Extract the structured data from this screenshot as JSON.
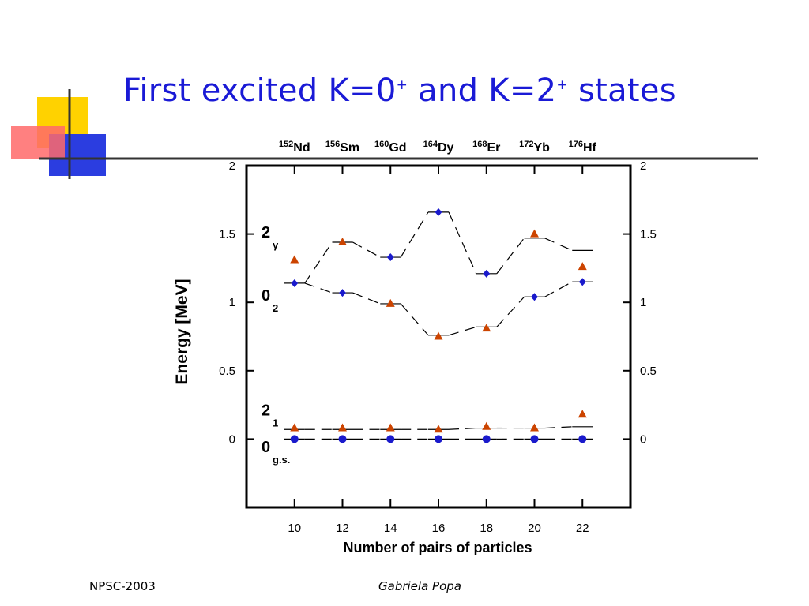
{
  "slide": {
    "title_parts": [
      "First excited K=0",
      "+",
      " and K=2",
      "+",
      " states"
    ],
    "footer_left": "NPSC-2003",
    "footer_right": "Gabriela Popa"
  },
  "decoration": {
    "colors": {
      "yellow": "#ffd200",
      "red": "#ff6a6a",
      "blue": "#2b3de0",
      "dark": "#333333"
    }
  },
  "chart_data": {
    "type": "scatter",
    "xlabel": "Number of pairs of particles",
    "ylabel": "Energy [MeV]",
    "xlim": [
      8,
      24
    ],
    "ylim": [
      -0.5,
      2
    ],
    "x_ticks": [
      10,
      12,
      14,
      16,
      18,
      20,
      22
    ],
    "y_ticks": [
      0,
      0.5,
      1,
      1.5,
      2
    ],
    "y_tick_labels": [
      "0",
      "0.5",
      "1",
      "1.5",
      "2"
    ],
    "top_labels": [
      {
        "x": 10,
        "mass": "152",
        "element": "Nd"
      },
      {
        "x": 12,
        "mass": "156",
        "element": "Sm"
      },
      {
        "x": 14,
        "mass": "160",
        "element": "Gd"
      },
      {
        "x": 16,
        "mass": "164",
        "element": "Dy"
      },
      {
        "x": 18,
        "mass": "168",
        "element": "Er"
      },
      {
        "x": 20,
        "mass": "172",
        "element": "Yb"
      },
      {
        "x": 22,
        "mass": "176",
        "element": "Hf"
      }
    ],
    "level_labels": [
      {
        "main": "2",
        "sub": "γ",
        "y": 1.52
      },
      {
        "main": "0",
        "sub": "2",
        "y": 1.06
      },
      {
        "main": "2",
        "sub": "1",
        "y": 0.22
      },
      {
        "main": "0",
        "sub": "g.s.",
        "y": -0.05
      }
    ],
    "colors": {
      "triangle": "#cc4400",
      "diamond": "#1a1acc",
      "circle": "#1a1acc",
      "line": "#000000"
    },
    "series": [
      {
        "marker": "diamond",
        "x": [
          10,
          12,
          14,
          16,
          18,
          20,
          22
        ],
        "y": [
          1.14,
          1.07,
          1.33,
          1.66,
          1.21,
          1.04,
          1.15
        ]
      },
      {
        "marker": "triangle",
        "x": [
          10,
          12,
          14,
          16,
          18,
          20,
          22
        ],
        "y": [
          1.31,
          1.44,
          0.99,
          0.75,
          0.81,
          1.5,
          1.26
        ]
      },
      {
        "marker": "triangle",
        "x": [
          10,
          12,
          14,
          16,
          18,
          20,
          22
        ],
        "y": [
          0.08,
          0.08,
          0.08,
          0.07,
          0.09,
          0.08,
          0.18
        ]
      },
      {
        "marker": "circle",
        "x": [
          10,
          12,
          14,
          16,
          18,
          20,
          22
        ],
        "y": [
          0,
          0,
          0,
          0,
          0,
          0,
          0
        ]
      }
    ],
    "theory_levels": {
      "upper": {
        "x": [
          10,
          12,
          14,
          16,
          18,
          20,
          22
        ],
        "y": [
          1.14,
          1.44,
          1.33,
          1.66,
          1.21,
          1.47,
          1.38
        ]
      },
      "lower": {
        "x": [
          10,
          12,
          14,
          16,
          18,
          20,
          22
        ],
        "y": [
          1.14,
          1.07,
          0.99,
          0.76,
          0.82,
          1.04,
          1.15
        ]
      },
      "first_2": {
        "x": [
          10,
          12,
          14,
          16,
          18,
          20,
          22
        ],
        "y": [
          0.07,
          0.07,
          0.07,
          0.07,
          0.08,
          0.08,
          0.09
        ]
      },
      "ground": {
        "x": [
          10,
          12,
          14,
          16,
          18,
          20,
          22
        ],
        "y": [
          0,
          0,
          0,
          0,
          0,
          0,
          0
        ]
      }
    }
  }
}
